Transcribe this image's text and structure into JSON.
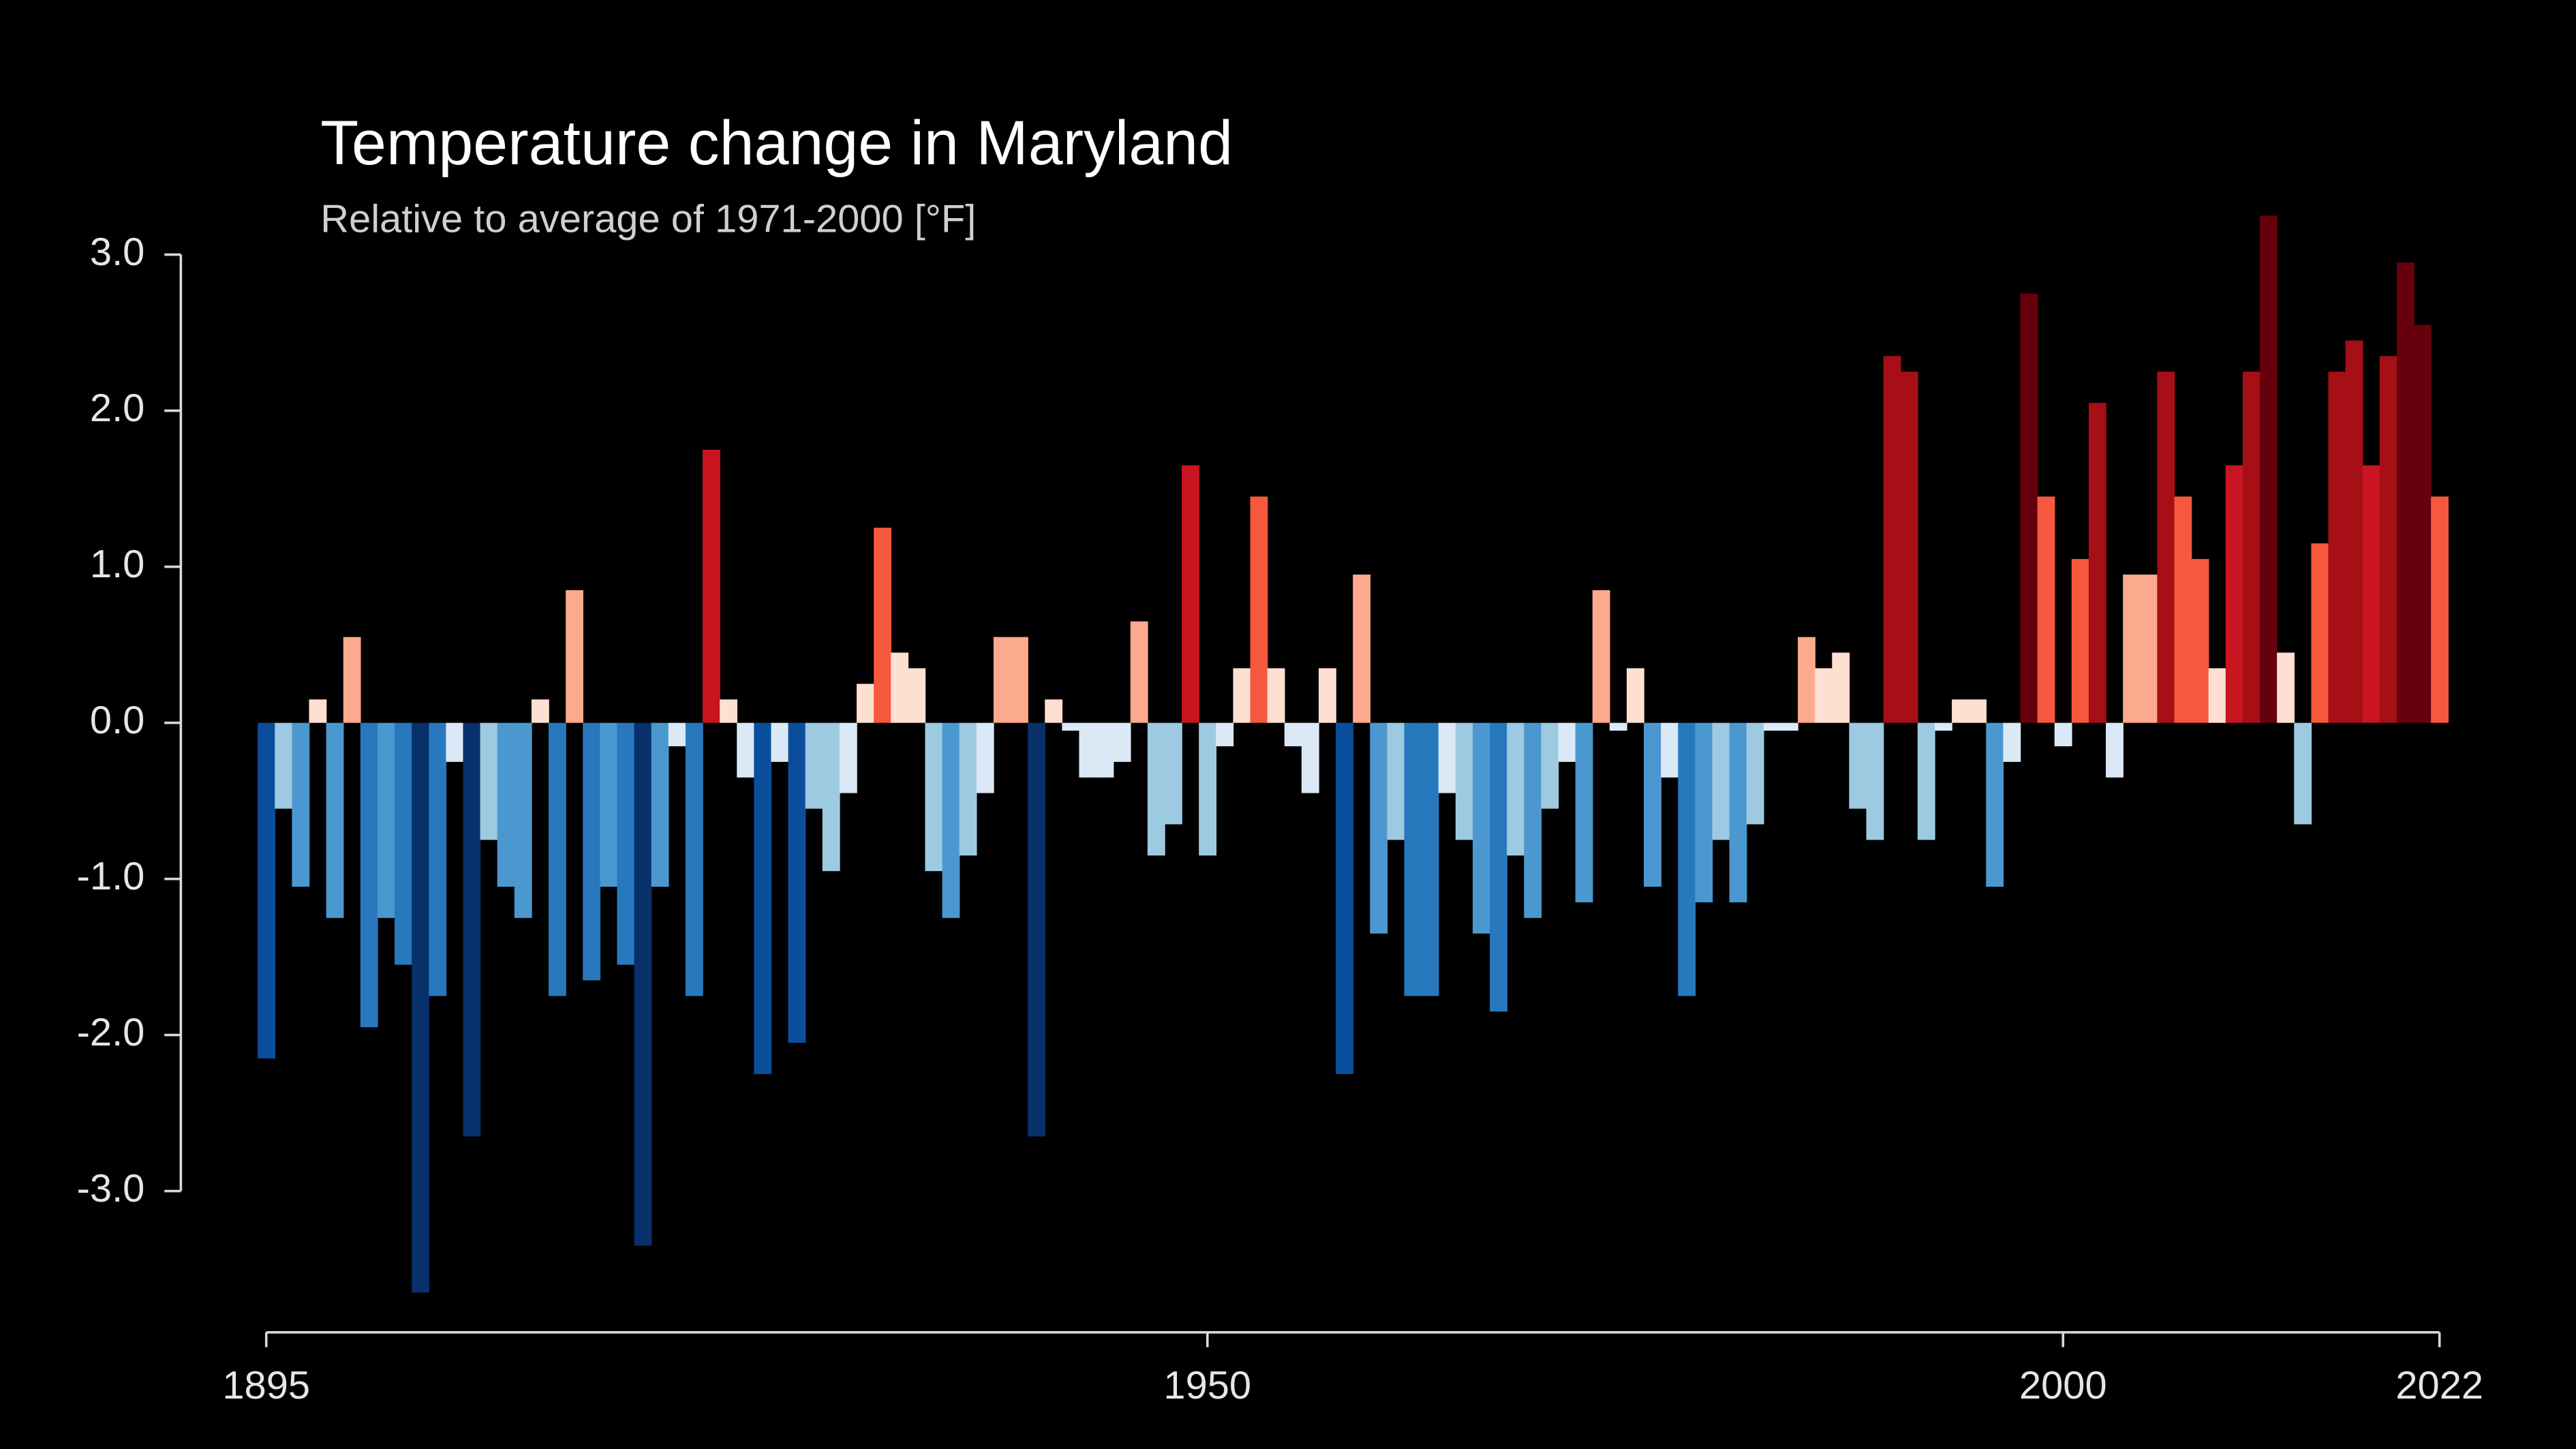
{
  "chart_data": {
    "type": "bar",
    "title": "Temperature change in Maryland",
    "subtitle": "Relative to average of 1971-2000  [°F]",
    "x": [
      1895,
      1896,
      1897,
      1898,
      1899,
      1900,
      1901,
      1902,
      1903,
      1904,
      1905,
      1906,
      1907,
      1908,
      1909,
      1910,
      1911,
      1912,
      1913,
      1914,
      1915,
      1916,
      1917,
      1918,
      1919,
      1920,
      1921,
      1922,
      1923,
      1924,
      1925,
      1926,
      1927,
      1928,
      1929,
      1930,
      1931,
      1932,
      1933,
      1934,
      1935,
      1936,
      1937,
      1938,
      1939,
      1940,
      1941,
      1942,
      1943,
      1944,
      1945,
      1946,
      1947,
      1948,
      1949,
      1950,
      1951,
      1952,
      1953,
      1954,
      1955,
      1956,
      1957,
      1958,
      1959,
      1960,
      1961,
      1962,
      1963,
      1964,
      1965,
      1966,
      1967,
      1968,
      1969,
      1970,
      1971,
      1972,
      1973,
      1974,
      1975,
      1976,
      1977,
      1978,
      1979,
      1980,
      1981,
      1982,
      1983,
      1984,
      1985,
      1986,
      1987,
      1988,
      1989,
      1990,
      1991,
      1992,
      1993,
      1994,
      1995,
      1996,
      1997,
      1998,
      1999,
      2000,
      2001,
      2002,
      2003,
      2004,
      2005,
      2006,
      2007,
      2008,
      2009,
      2010,
      2011,
      2012,
      2013,
      2014,
      2015,
      2016,
      2017,
      2018,
      2019,
      2020,
      2021,
      2022
    ],
    "values": [
      -2.15,
      -0.55,
      -1.05,
      0.15,
      -1.25,
      0.55,
      -1.95,
      -1.25,
      -1.55,
      -3.65,
      -1.75,
      -0.25,
      -2.65,
      -0.75,
      -1.05,
      -1.25,
      0.15,
      -1.75,
      0.85,
      -1.65,
      -1.05,
      -1.55,
      -3.35,
      -1.05,
      -0.15,
      -1.75,
      1.75,
      0.15,
      -0.35,
      -2.25,
      -0.25,
      -2.05,
      -0.55,
      -0.95,
      -0.45,
      0.25,
      1.25,
      0.45,
      0.35,
      -0.95,
      -1.25,
      -0.85,
      -0.45,
      0.55,
      0.55,
      -2.65,
      0.15,
      -0.05,
      -0.35,
      -0.35,
      -0.25,
      0.65,
      -0.85,
      -0.65,
      1.65,
      -0.85,
      -0.15,
      0.35,
      1.45,
      0.35,
      -0.15,
      -0.45,
      0.35,
      -2.25,
      0.95,
      -1.35,
      -0.75,
      -1.75,
      -1.75,
      -0.45,
      -0.75,
      -1.35,
      -1.85,
      -0.85,
      -1.25,
      -0.55,
      -0.25,
      -1.15,
      0.85,
      -0.05,
      0.35,
      -1.05,
      -0.35,
      -1.75,
      -1.15,
      -0.75,
      -1.15,
      -0.65,
      -0.05,
      -0.05,
      0.55,
      0.35,
      0.45,
      -0.55,
      -0.75,
      2.35,
      2.25,
      -0.75,
      -0.05,
      0.15,
      0.15,
      -1.05,
      -0.25,
      2.75,
      1.45,
      -0.15,
      1.05,
      2.05,
      -0.35,
      0.95,
      0.95,
      2.25,
      1.45,
      1.05,
      0.35,
      1.65,
      2.25,
      3.25,
      0.45,
      -0.65,
      1.15,
      2.25,
      2.45,
      1.65,
      2.35,
      2.95,
      2.55,
      1.45
    ],
    "colormap": [
      "#08306b",
      "#0b4f9c",
      "#2878bd",
      "#4a98cf",
      "#9ecae1",
      "#dbe9f6",
      "#fde0d2",
      "#fcaa8e",
      "#f6583e",
      "#c9151f",
      "#a50f15",
      "#67000d"
    ],
    "xlim": [
      1895,
      2022
    ],
    "xticks": [
      1895,
      1950,
      2000,
      2022
    ],
    "ylim": [
      -3.8,
      3.4
    ],
    "yticks": [
      {
        "value": -3,
        "label": "-3.0"
      },
      {
        "value": -2,
        "label": "-2.0"
      },
      {
        "value": -1,
        "label": "-1.0"
      },
      {
        "value": 0,
        "label": "0.0"
      },
      {
        "value": 1,
        "label": "1.0"
      },
      {
        "value": 2,
        "label": "2.0"
      },
      {
        "value": 3,
        "label": "3.0"
      }
    ]
  }
}
